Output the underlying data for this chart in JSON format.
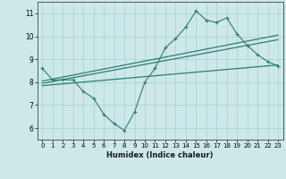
{
  "zigzag_x": [
    0,
    1,
    2,
    3,
    4,
    5,
    6,
    7,
    8,
    9,
    10,
    11,
    12,
    13,
    14,
    15,
    16,
    17,
    18,
    19,
    20,
    21,
    22,
    23
  ],
  "zigzag_y": [
    8.6,
    8.1,
    8.1,
    8.1,
    7.6,
    7.3,
    6.6,
    6.2,
    5.9,
    6.7,
    8.0,
    8.6,
    9.5,
    9.9,
    10.4,
    11.1,
    10.7,
    10.6,
    10.8,
    10.1,
    9.6,
    9.2,
    8.9,
    8.7
  ],
  "line1_x": [
    0,
    23
  ],
  "line1_y": [
    8.05,
    10.05
  ],
  "line2_x": [
    0,
    23
  ],
  "line2_y": [
    7.95,
    9.85
  ],
  "line3_x": [
    0,
    23
  ],
  "line3_y": [
    7.85,
    8.75
  ],
  "line_color": "#2e7d6e",
  "bg_color": "#cde8e8",
  "grid_color": "#aacfcf",
  "xlabel": "Humidex (Indice chaleur)",
  "xlim": [
    -0.5,
    23.5
  ],
  "ylim": [
    5.5,
    11.5
  ],
  "yticks": [
    6,
    7,
    8,
    9,
    10,
    11
  ],
  "xticks": [
    0,
    1,
    2,
    3,
    4,
    5,
    6,
    7,
    8,
    9,
    10,
    11,
    12,
    13,
    14,
    15,
    16,
    17,
    18,
    19,
    20,
    21,
    22,
    23
  ]
}
